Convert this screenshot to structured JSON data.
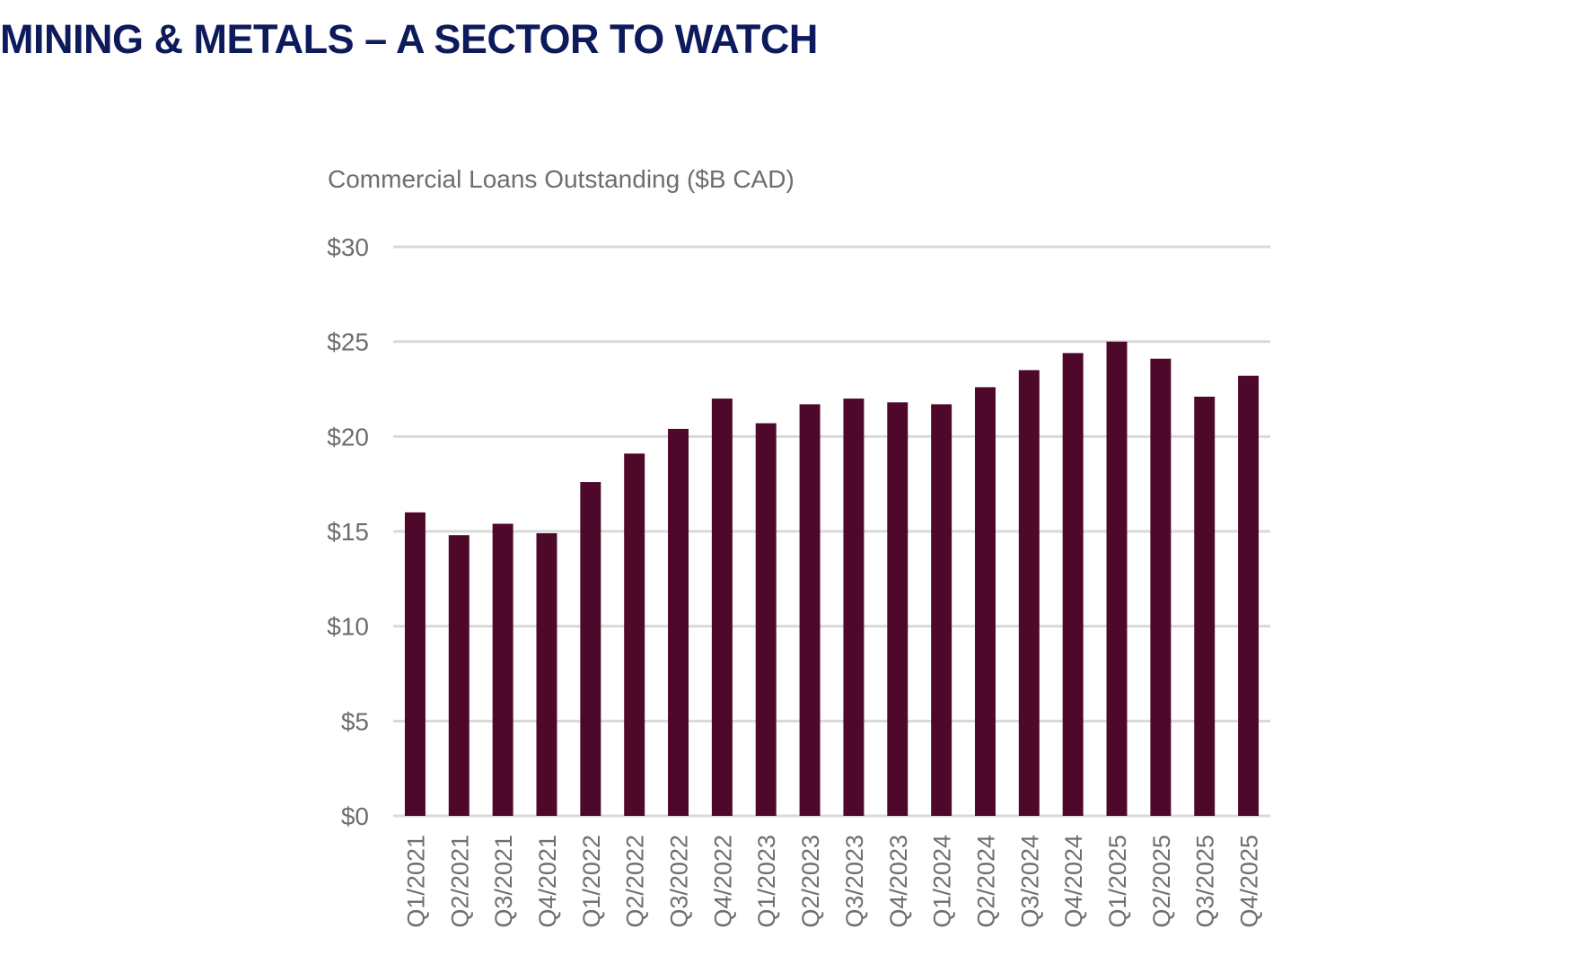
{
  "page": {
    "title": "MINING & METALS – A SECTOR TO WATCH"
  },
  "chart_data": {
    "type": "bar",
    "title": "Commercial Loans Outstanding ($B CAD)",
    "xlabel": "",
    "ylabel": "",
    "ylim": [
      0,
      30
    ],
    "yticks": [
      0,
      5,
      10,
      15,
      20,
      25,
      30
    ],
    "ytick_labels": [
      "$0",
      "$5",
      "$10",
      "$15",
      "$20",
      "$25",
      "$30"
    ],
    "grid": true,
    "categories": [
      "Q1/2021",
      "Q2/2021",
      "Q3/2021",
      "Q4/2021",
      "Q1/2022",
      "Q2/2022",
      "Q3/2022",
      "Q4/2022",
      "Q1/2023",
      "Q2/2023",
      "Q3/2023",
      "Q4/2023",
      "Q1/2024",
      "Q2/2024",
      "Q3/2024",
      "Q4/2024",
      "Q1/2025",
      "Q2/2025",
      "Q3/2025",
      "Q4/2025"
    ],
    "values": [
      16.0,
      14.8,
      15.4,
      14.9,
      17.6,
      19.1,
      20.4,
      22.0,
      20.7,
      21.7,
      22.0,
      21.8,
      21.7,
      22.6,
      23.5,
      24.4,
      25.0,
      24.1,
      22.1,
      23.2
    ],
    "bar_color": "#4e0829",
    "grid_color": "#d9d9d9",
    "title_color": "#0d1a5c"
  }
}
